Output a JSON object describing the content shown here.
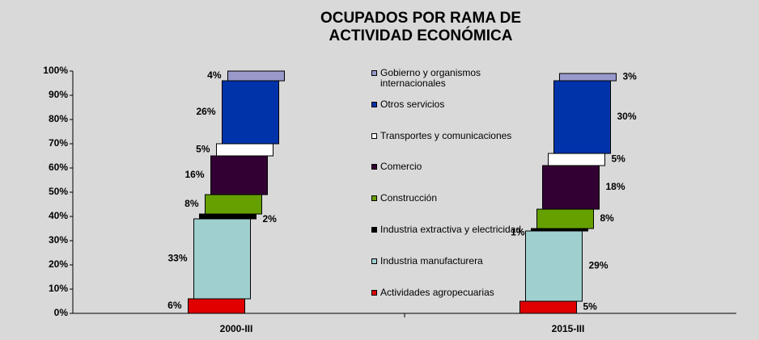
{
  "chart_data": {
    "type": "stacked-bar",
    "title": "OCUPADOS POR RAMA DE\nACTIVIDAD ECONÓMICA",
    "categories": [
      "2000-III",
      "2015-III"
    ],
    "series": [
      {
        "name": "Actividades agropecuarias",
        "color": "#e00000",
        "values": [
          6,
          5
        ],
        "value_labels": [
          "6%",
          "5%"
        ]
      },
      {
        "name": "Industria manufacturera",
        "color": "#9fd0cf",
        "values": [
          33,
          29
        ],
        "value_labels": [
          "33%",
          "29%"
        ]
      },
      {
        "name": "Industria extractiva y electricidad",
        "color": "#000000",
        "values": [
          2,
          1
        ],
        "value_labels": [
          "2%",
          "1%"
        ]
      },
      {
        "name": "Construcción",
        "color": "#66a000",
        "values": [
          8,
          8
        ],
        "value_labels": [
          "8%",
          "8%"
        ]
      },
      {
        "name": "Comercio",
        "color": "#330033",
        "values": [
          16,
          18
        ],
        "value_labels": [
          "16%",
          "18%"
        ]
      },
      {
        "name": "Transportes y comunicaciones",
        "color": "#ffffff",
        "values": [
          5,
          5
        ],
        "value_labels": [
          "5%",
          "5%"
        ]
      },
      {
        "name": "Otros servicios",
        "color": "#0033aa",
        "values": [
          26,
          30
        ],
        "value_labels": [
          "26%",
          "30%"
        ]
      },
      {
        "name": "Gobierno y organismos\ninternacionales",
        "color": "#9999cc",
        "values": [
          4,
          3
        ],
        "value_labels": [
          "4%",
          "3%"
        ]
      }
    ],
    "ylim": [
      0,
      100
    ],
    "yticks": [
      {
        "value": 0,
        "label": "0%"
      },
      {
        "value": 10,
        "label": "10%"
      },
      {
        "value": 20,
        "label": "20%"
      },
      {
        "value": 30,
        "label": "30%"
      },
      {
        "value": 40,
        "label": "40%"
      },
      {
        "value": 50,
        "label": "50%"
      },
      {
        "value": 60,
        "label": "60%"
      },
      {
        "value": 70,
        "label": "70%"
      },
      {
        "value": 80,
        "label": "80%"
      },
      {
        "value": 90,
        "label": "90%"
      },
      {
        "value": 100,
        "label": "100%"
      }
    ]
  }
}
